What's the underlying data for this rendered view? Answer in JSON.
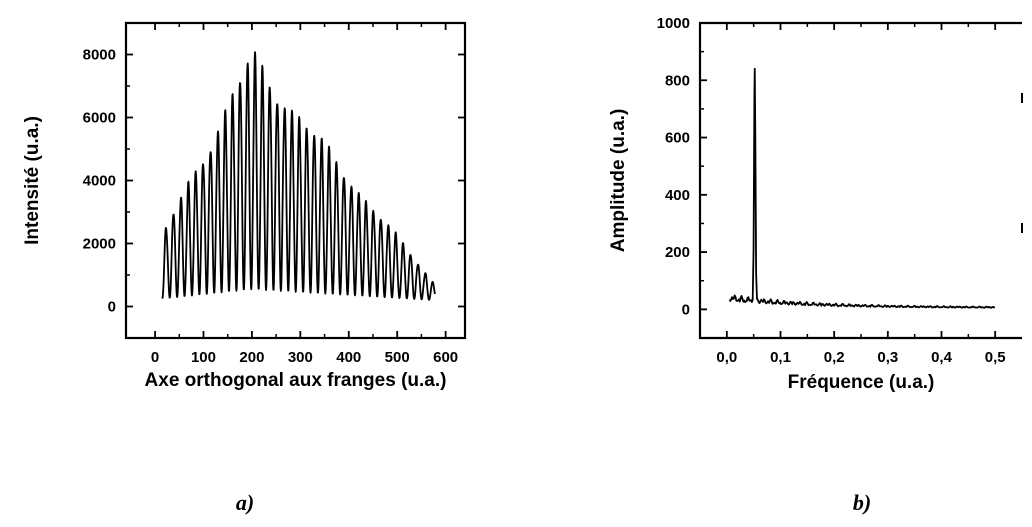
{
  "chart_data": [
    {
      "type": "line",
      "caption": "a)",
      "xlabel": "Axe orthogonal aux franges (u.a.)",
      "ylabel": "Intensité (u.a.)",
      "xlim": [
        -60,
        640
      ],
      "ylim": [
        -1000,
        9000
      ],
      "xticks": [
        0,
        100,
        200,
        300,
        400,
        500,
        600
      ],
      "xtick_labels": [
        "0",
        "100",
        "200",
        "300",
        "400",
        "500",
        "600"
      ],
      "yticks": [
        0,
        2000,
        4000,
        6000,
        8000
      ],
      "ytick_labels": [
        "0",
        "2000",
        "4000",
        "6000",
        "8000"
      ],
      "grid": false,
      "fringes": {
        "x_start": 15,
        "x_end": 578,
        "period": 15.3,
        "peak_x": 200,
        "peak_value": 7800,
        "value_at_start": 2200,
        "value_at_end": 700,
        "baseline_at_start": 250,
        "baseline_at_peak": 550,
        "baseline_at_end": 200
      }
    },
    {
      "type": "line",
      "caption": "b)",
      "xlabel": "Fréquence (u.a.)",
      "ylabel": "Amplitude (u.a.)",
      "xlim": [
        -0.05,
        0.55
      ],
      "ylim": [
        -100,
        1000
      ],
      "xticks": [
        0.0,
        0.1,
        0.2,
        0.3,
        0.4,
        0.5
      ],
      "xtick_labels": [
        "0,0",
        "0,1",
        "0,2",
        "0,3",
        "0,4",
        "0,5"
      ],
      "yticks": [
        0,
        200,
        400,
        600,
        800,
        1000
      ],
      "ytick_labels": [
        "0",
        "200",
        "400",
        "600",
        "800",
        "1000"
      ],
      "grid": false,
      "spectrum": {
        "peak_frequency": 0.052,
        "peak_amplitude": 840,
        "x_start": 0.005,
        "x_end": 0.5,
        "noise_floor_low_freq": 45,
        "noise_floor_high_freq": 8
      }
    }
  ]
}
